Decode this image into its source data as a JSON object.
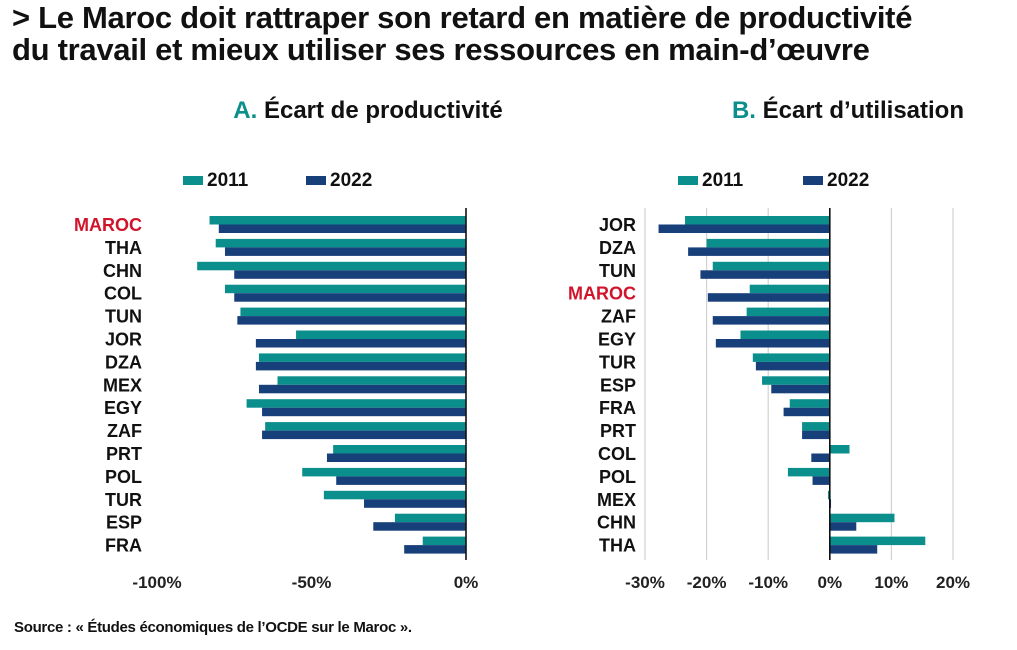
{
  "headline": {
    "line1": "> Le Maroc doit rattraper son retard en matière de productivité",
    "line2": "du travail et mieux utiliser ses ressources en main-d’œuvre"
  },
  "source": "Source : « Études économiques de l’OCDE sur le Maroc ».",
  "colors": {
    "c2011": "#0b8f8c",
    "c2022": "#173f7a",
    "highlight": "#d0142b",
    "teal_letter": "#0b8f8c"
  },
  "chart_data": [
    {
      "type": "bar",
      "orientation": "horizontal",
      "panel_letter": "A.",
      "title": "Écart de productivité",
      "legend": [
        "2011",
        "2022"
      ],
      "highlight": "MAROC",
      "categories": [
        "MAROC",
        "THA",
        "CHN",
        "COL",
        "TUN",
        "JOR",
        "DZA",
        "MEX",
        "EGY",
        "ZAF",
        "PRT",
        "POL",
        "TUR",
        "ESP",
        "FRA"
      ],
      "series": [
        {
          "name": "2011",
          "values": [
            -83,
            -81,
            -87,
            -78,
            -73,
            -55,
            -67,
            -61,
            -71,
            -65,
            -43,
            -53,
            -46,
            -23,
            -14
          ]
        },
        {
          "name": "2022",
          "values": [
            -80,
            -78,
            -75,
            -75,
            -74,
            -68,
            -68,
            -67,
            -66,
            -66,
            -45,
            -42,
            -33,
            -30,
            -20
          ]
        }
      ],
      "xlim": [
        -100,
        0
      ],
      "ticks": [
        -100,
        -50,
        0
      ],
      "tick_labels": [
        "-100%",
        "-50%",
        "0%"
      ],
      "grid": false
    },
    {
      "type": "bar",
      "orientation": "horizontal",
      "panel_letter": "B.",
      "title": "Écart d’utilisation",
      "legend": [
        "2011",
        "2022"
      ],
      "highlight": "MAROC",
      "categories": [
        "JOR",
        "DZA",
        "TUN",
        "MAROC",
        "ZAF",
        "EGY",
        "TUR",
        "ESP",
        "FRA",
        "PRT",
        "COL",
        "POL",
        "MEX",
        "CHN",
        "THA"
      ],
      "series": [
        {
          "name": "2011",
          "values": [
            -23.5,
            -20,
            -19,
            -13,
            -13.5,
            -14.5,
            -12.5,
            -11,
            -6.5,
            -4.5,
            3.2,
            -6.8,
            -0.3,
            10.5,
            15.5
          ]
        },
        {
          "name": "2022",
          "values": [
            -27.8,
            -23,
            -21,
            -19.8,
            -19,
            -18.5,
            -12,
            -9.5,
            -7.5,
            -4.5,
            -3,
            -2.8,
            0.2,
            4.3,
            7.7
          ]
        }
      ],
      "xlim": [
        -30,
        20
      ],
      "ticks": [
        -30,
        -20,
        -10,
        0,
        10,
        20
      ],
      "tick_labels": [
        "-30%",
        "-20%",
        "-10%",
        "0%",
        "10%",
        "20%"
      ],
      "grid": true
    }
  ]
}
